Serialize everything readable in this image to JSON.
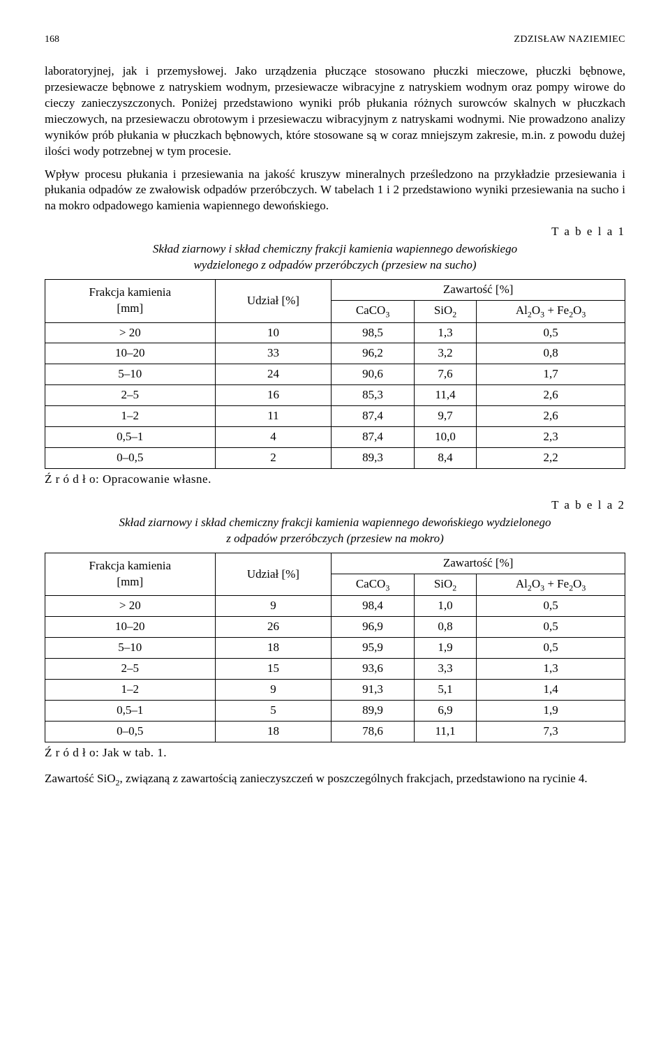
{
  "header": {
    "page_number": "168",
    "author": "ZDZISŁAW NAZIEMIEC"
  },
  "paragraphs": {
    "p1": "laboratoryjnej, jak i przemysłowej. Jako urządzenia płuczące stosowano płuczki mieczowe, płuczki bębnowe, przesiewacze bębnowe z natryskiem wodnym, przesiewacze wibracyjne z natryskiem wodnym oraz pompy wirowe do cieczy zanieczyszczonych. Poniżej przedstawiono wyniki prób płukania różnych surowców skalnych w płuczkach mieczowych, na przesiewaczu obrotowym i przesiewaczu wibracyjnym z natryskami wodnymi. Nie prowadzono analizy wyników prób płukania w płuczkach bębnowych, które stosowane są w coraz mniejszym zakresie, m.in. z powodu dużej ilości wody potrzebnej w tym procesie.",
    "p2": "Wpływ procesu płukania i przesiewania na jakość kruszyw mineralnych prześledzono na przykładzie przesiewania i płukania odpadów ze zwałowisk odpadów przeróbczych. W tabelach 1 i 2 przedstawiono wyniki przesiewania na sucho i na mokro odpadowego kamienia wapiennego dewońskiego.",
    "p3_prefix": "Zawartość SiO",
    "p3_suffix": ", związaną z zawartością zanieczyszczeń w poszczególnych frakcjach, przedstawiono na rycinie 4."
  },
  "table1": {
    "label": "T a b e l a  1",
    "title_l1": "Skład ziarnowy i skład chemiczny frakcji kamienia wapiennego dewońskiego",
    "title_l2": "wydzielonego z odpadów przeróbczych (przesiew na sucho)",
    "headers": {
      "col_fraction_l1": "Frakcja kamienia",
      "col_fraction_l2": "[mm]",
      "col_share": "Udział [%]",
      "col_content": "Zawartość [%]",
      "col_caco3": "CaCO",
      "col_sio2": "SiO",
      "col_alfe": "Al",
      "col_alfe_mid": "O",
      "col_alfe_plus": " + Fe",
      "col_alfe_end": "O"
    },
    "rows": [
      {
        "f": "> 20",
        "u": "10",
        "c": "98,5",
        "s": "1,3",
        "a": "0,5"
      },
      {
        "f": "10–20",
        "u": "33",
        "c": "96,2",
        "s": "3,2",
        "a": "0,8"
      },
      {
        "f": "5–10",
        "u": "24",
        "c": "90,6",
        "s": "7,6",
        "a": "1,7"
      },
      {
        "f": "2–5",
        "u": "16",
        "c": "85,3",
        "s": "11,4",
        "a": "2,6"
      },
      {
        "f": "1–2",
        "u": "11",
        "c": "87,4",
        "s": "9,7",
        "a": "2,6"
      },
      {
        "f": "0,5–1",
        "u": "4",
        "c": "87,4",
        "s": "10,0",
        "a": "2,3"
      },
      {
        "f": "0–0,5",
        "u": "2",
        "c": "89,3",
        "s": "8,4",
        "a": "2,2"
      }
    ],
    "source": "Ź r ó d ł o: Opracowanie własne."
  },
  "table2": {
    "label": "T a b e l a  2",
    "title_l1": "Skład ziarnowy i skład chemiczny frakcji kamienia wapiennego dewońskiego wydzielonego",
    "title_l2": "z odpadów przeróbczych (przesiew na mokro)",
    "headers": {
      "col_fraction_l1": "Frakcja kamienia",
      "col_fraction_l2": "[mm]",
      "col_share": "Udział [%]",
      "col_content": "Zawartość [%]",
      "col_caco3": "CaCO",
      "col_sio2": "SiO",
      "col_alfe": "Al",
      "col_alfe_mid": "O",
      "col_alfe_plus": " + Fe",
      "col_alfe_end": "O"
    },
    "rows": [
      {
        "f": "> 20",
        "u": "9",
        "c": "98,4",
        "s": "1,0",
        "a": "0,5"
      },
      {
        "f": "10–20",
        "u": "26",
        "c": "96,9",
        "s": "0,8",
        "a": "0,5"
      },
      {
        "f": "5–10",
        "u": "18",
        "c": "95,9",
        "s": "1,9",
        "a": "0,5"
      },
      {
        "f": "2–5",
        "u": "15",
        "c": "93,6",
        "s": "3,3",
        "a": "1,3"
      },
      {
        "f": "1–2",
        "u": "9",
        "c": "91,3",
        "s": "5,1",
        "a": "1,4"
      },
      {
        "f": "0,5–1",
        "u": "5",
        "c": "89,9",
        "s": "6,9",
        "a": "1,9"
      },
      {
        "f": "0–0,5",
        "u": "18",
        "c": "78,6",
        "s": "11,1",
        "a": "7,3"
      }
    ],
    "source": "Ź r ó d ł o: Jak w tab. 1."
  }
}
